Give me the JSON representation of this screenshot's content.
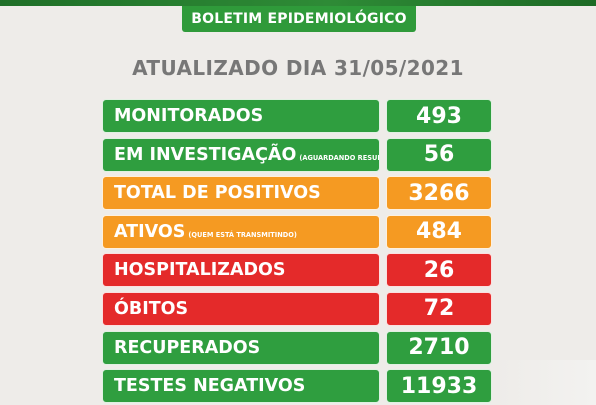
{
  "header": {
    "title": "BOLETIM EPIDEMIOLÓGICO"
  },
  "updated_text": "ATUALIZADO DIA 31/05/2021",
  "colors": {
    "green": "#2f9e3f",
    "orange": "#f59a22",
    "red": "#e42a2a",
    "banner_green": "#2f9a3a",
    "text_gray": "#777777"
  },
  "stats": [
    {
      "label": "MONITORADOS",
      "note": "",
      "value": "493",
      "color": "green"
    },
    {
      "label": "EM INVESTIGAÇÃO",
      "note": "(AGUARDANDO RESULTADO)",
      "value": "56",
      "color": "green"
    },
    {
      "label": "TOTAL DE POSITIVOS",
      "note": "",
      "value": "3266",
      "color": "orange"
    },
    {
      "label": "ATIVOS",
      "note": "(QUEM ESTÁ TRANSMITINDO)",
      "value": "484",
      "color": "orange"
    },
    {
      "label": "HOSPITALIZADOS",
      "note": "",
      "value": "26",
      "color": "red"
    },
    {
      "label": "ÓBITOS",
      "note": "",
      "value": "72",
      "color": "red"
    },
    {
      "label": "RECUPERADOS",
      "note": "",
      "value": "2710",
      "color": "green"
    },
    {
      "label": "TESTES NEGATIVOS",
      "note": "",
      "value": "11933",
      "color": "green"
    }
  ]
}
